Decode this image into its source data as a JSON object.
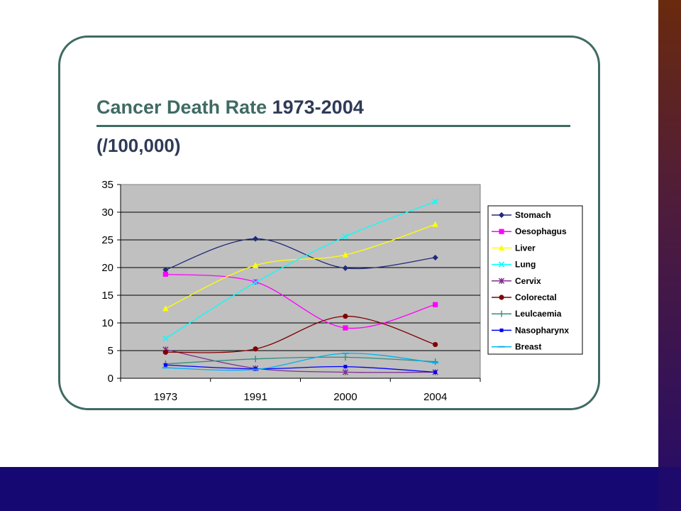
{
  "title": {
    "main": "Cancer Death Rate",
    "years": "1973-2004",
    "unit": "(/100,000)"
  },
  "colors": {
    "title_green": "#3f6b63",
    "title_navy": "#2f3a56",
    "plot_bg": "#c0c0c0",
    "bottom_band": "#150873"
  },
  "chart_data": {
    "type": "line",
    "title": "Cancer Death Rate 1973-2004 (/100,000)",
    "xlabel": "",
    "ylabel": "",
    "categories": [
      "1973",
      "1991",
      "2000",
      "2004"
    ],
    "ylim": [
      0,
      35
    ],
    "yticks": [
      0,
      5,
      10,
      15,
      20,
      25,
      30,
      35
    ],
    "grid": true,
    "legend_position": "right",
    "series": [
      {
        "name": "Stomach",
        "color": "#1f2a7a",
        "marker": "diamond",
        "values": [
          19.6,
          25.2,
          19.9,
          21.8
        ]
      },
      {
        "name": "Oesophagus",
        "color": "#ff00ff",
        "marker": "square",
        "values": [
          18.8,
          17.4,
          9.1,
          13.3
        ]
      },
      {
        "name": "Liver",
        "color": "#ffff00",
        "marker": "triangle",
        "values": [
          12.6,
          20.4,
          22.3,
          27.8
        ]
      },
      {
        "name": "Lung",
        "color": "#00ffff",
        "marker": "x",
        "values": [
          7.2,
          17.3,
          25.6,
          31.9
        ]
      },
      {
        "name": "Cervix",
        "color": "#7f2f8f",
        "marker": "star",
        "values": [
          5.2,
          1.8,
          1.1,
          1.1
        ]
      },
      {
        "name": "Colorectal",
        "color": "#800000",
        "marker": "circle",
        "values": [
          4.7,
          5.3,
          11.2,
          6.1
        ]
      },
      {
        "name": "Leulcaemia",
        "color": "#2f8f7f",
        "marker": "plus",
        "values": [
          2.6,
          3.5,
          3.8,
          3.0
        ]
      },
      {
        "name": "Nasopharynx",
        "color": "#0000ff",
        "marker": "smallsquare",
        "values": [
          2.4,
          1.7,
          2.1,
          1.1
        ]
      },
      {
        "name": "Breast",
        "color": "#00b0f0",
        "marker": "dash",
        "values": [
          1.9,
          1.6,
          4.5,
          2.8
        ]
      }
    ]
  }
}
